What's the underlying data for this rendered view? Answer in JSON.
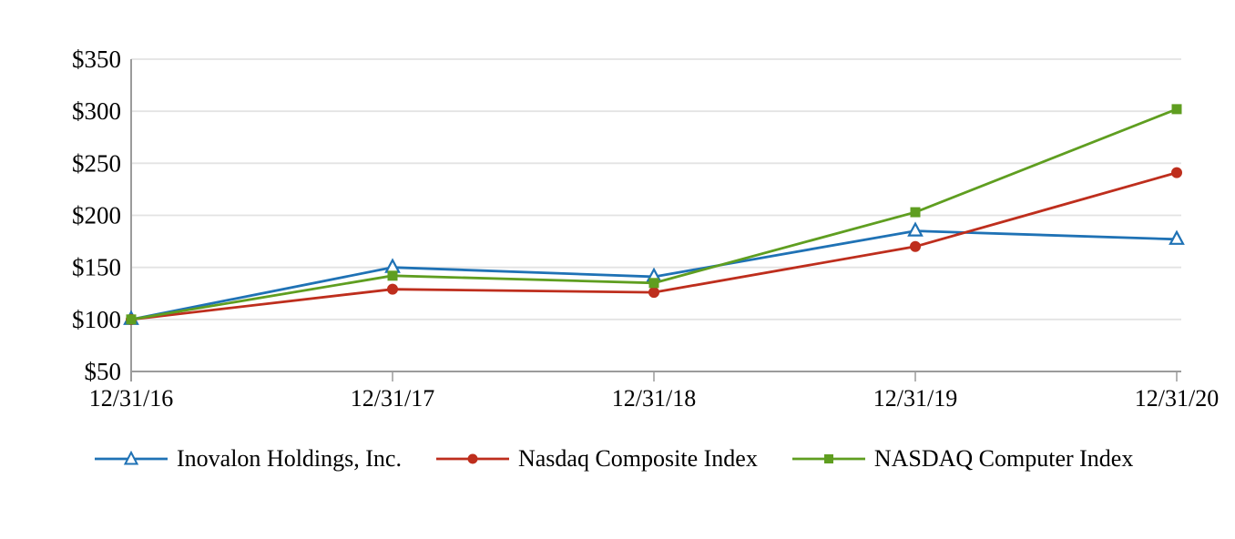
{
  "chart_data": {
    "type": "line",
    "x": [
      "12/31/16",
      "12/31/17",
      "12/31/18",
      "12/31/19",
      "12/31/20"
    ],
    "y_tick_labels": [
      "$350",
      "$300",
      "$250",
      "$200",
      "$150",
      "$100",
      "$50"
    ],
    "ylim": [
      50,
      350
    ],
    "grid": "horizontal",
    "legend_position": "bottom",
    "series": [
      {
        "name": "Inovalon Holdings, Inc.",
        "marker": "triangle-open",
        "color": "#1F72B5",
        "values": [
          100,
          150,
          141,
          185,
          177
        ]
      },
      {
        "name": "Nasdaq Composite Index",
        "marker": "circle",
        "color": "#BE2E1D",
        "values": [
          100,
          129,
          126,
          170,
          241
        ]
      },
      {
        "name": "NASDAQ Computer Index",
        "marker": "square",
        "color": "#5F9E20",
        "values": [
          100,
          142,
          135,
          203,
          302
        ]
      }
    ]
  },
  "colors": {
    "background": "#FFFFFF",
    "gridline": "#E3E3E3",
    "axis": "#9B9B9B",
    "text": "#000000",
    "marker_open_fill": "#FFFFFF"
  }
}
